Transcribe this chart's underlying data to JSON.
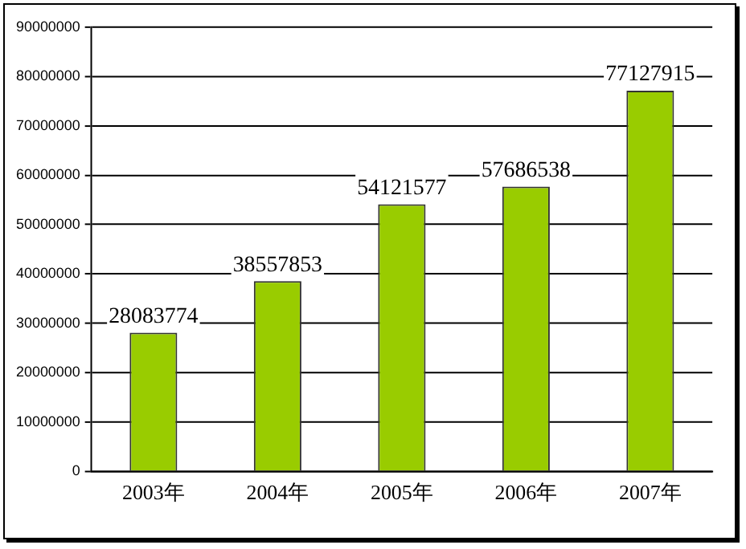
{
  "chart_data": {
    "type": "bar",
    "categories": [
      "2003年",
      "2004年",
      "2005年",
      "2006年",
      "2007年"
    ],
    "values": [
      28083774,
      38557853,
      54121577,
      57686538,
      77127915
    ],
    "color": "#99cc00",
    "ylim": [
      0,
      90000000
    ],
    "yticks": [
      0,
      10000000,
      20000000,
      30000000,
      40000000,
      50000000,
      60000000,
      70000000,
      80000000,
      90000000
    ],
    "grid": "y",
    "data_labels": true,
    "legend": false
  }
}
